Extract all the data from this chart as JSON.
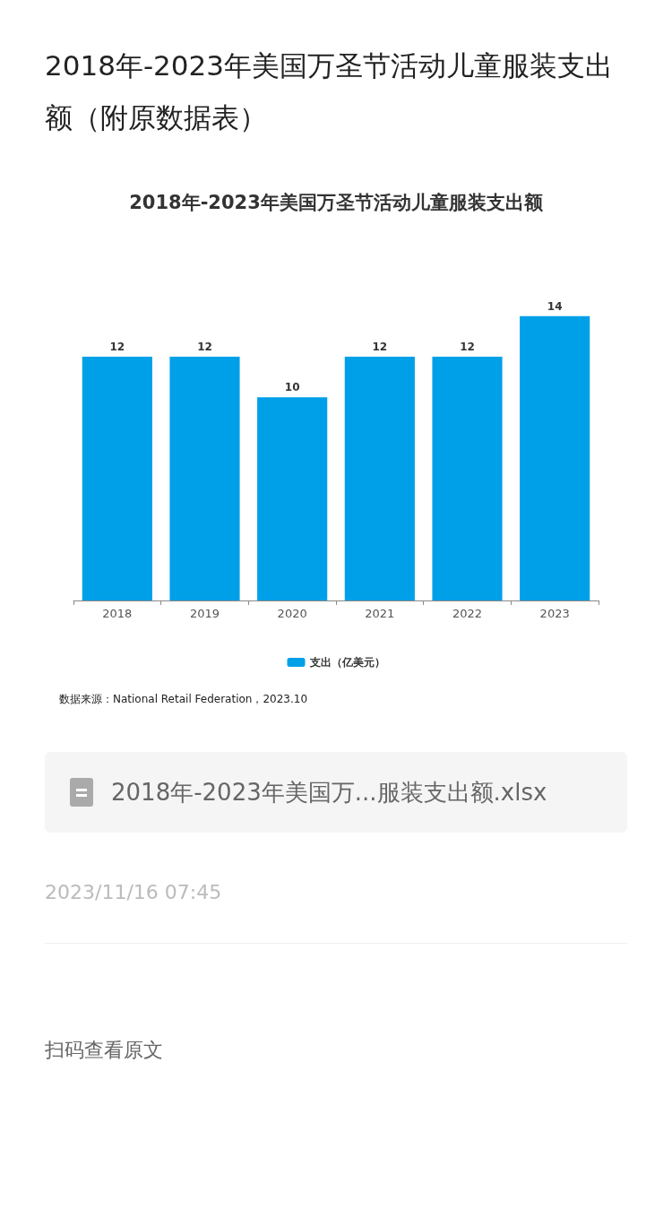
{
  "chart_data": {
    "type": "bar",
    "title": "2018年-2023年美国万圣节活动儿童服装支出额（附原数据表）",
    "subtitle": "2018年-2023年美国万圣节活动儿童服装支出额",
    "categories": [
      "2018",
      "2019",
      "2020",
      "2021",
      "2022",
      "2023"
    ],
    "series": [
      {
        "name": "支出（亿美元）",
        "color": "#00a0e9",
        "values": [
          12,
          12,
          10,
          12,
          12,
          14
        ]
      }
    ],
    "data_labels": true,
    "legend": "bottom",
    "annotations": [
      "数据来源：National Retail Federation，2023.10",
      "2018年-2023年美国万...服装支出额.xlsx",
      "2023/11/16 07:45",
      "扫码查看原文"
    ]
  }
}
